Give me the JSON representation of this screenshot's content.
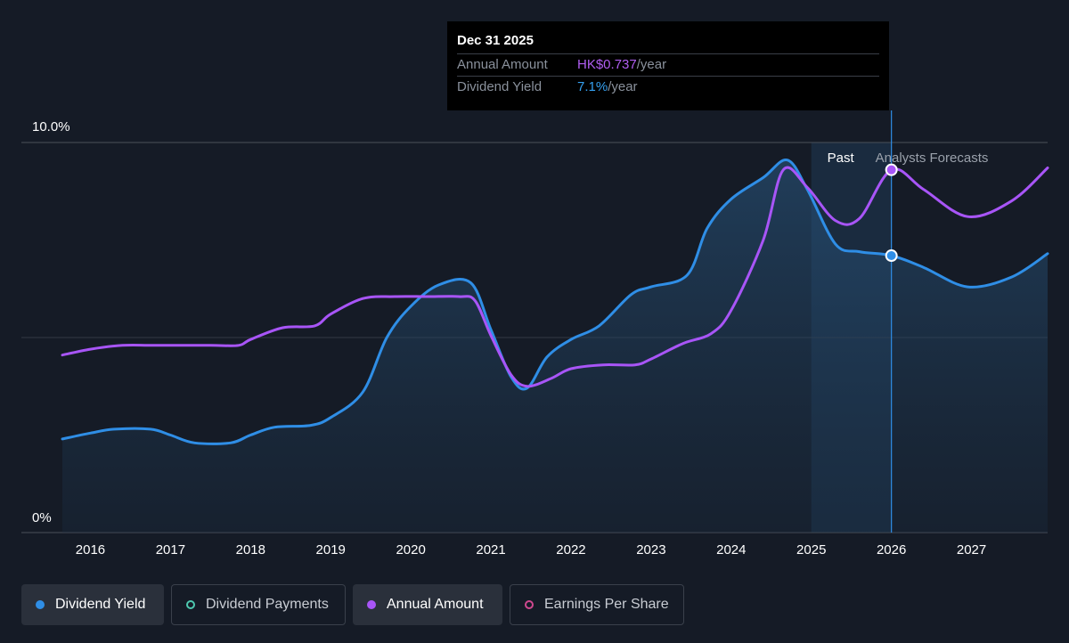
{
  "tooltip": {
    "date": "Dec 31 2025",
    "rows": [
      {
        "label": "Annual Amount",
        "value": "HK$0.737",
        "suffix": "/year"
      },
      {
        "label": "Dividend Yield",
        "value": "7.1%",
        "suffix": "/year"
      }
    ]
  },
  "legend": [
    {
      "label": "Dividend Yield",
      "color": "#2f8ee6",
      "active": true,
      "filled": true
    },
    {
      "label": "Dividend Payments",
      "color": "#4ec9b0",
      "active": false,
      "filled": false
    },
    {
      "label": "Annual Amount",
      "color": "#a855f7",
      "active": true,
      "filled": true
    },
    {
      "label": "Earnings Per Share",
      "color": "#d0488f",
      "active": false,
      "filled": false
    }
  ],
  "colors": {
    "background": "#151b26",
    "yield_line": "#2f8ee6",
    "amount_line": "#a855f7",
    "forecast_band": "#1e3750",
    "gridline": "#4a505a"
  },
  "chart_data": {
    "type": "line",
    "y_tick_labels": [
      "10.0%",
      "0%"
    ],
    "ylim": [
      0,
      10
    ],
    "xlim": [
      2015.65,
      2027.95
    ],
    "x_ticks": [
      2016,
      2017,
      2018,
      2019,
      2020,
      2021,
      2022,
      2023,
      2024,
      2025,
      2026,
      2027
    ],
    "x_tick_labels": [
      "2016",
      "2017",
      "2018",
      "2019",
      "2020",
      "2021",
      "2022",
      "2023",
      "2024",
      "2025",
      "2026",
      "2027"
    ],
    "regions": {
      "past_label": "Past",
      "forecast_label": "Analysts Forecasts",
      "forecast_start": 2025.0,
      "past_end": 2026.0
    },
    "hover_x": 2026.0,
    "series": [
      {
        "name": "Dividend Yield",
        "color": "#2f8ee6",
        "filled": true,
        "points": [
          [
            2015.65,
            2.4
          ],
          [
            2016.0,
            2.55
          ],
          [
            2016.3,
            2.65
          ],
          [
            2016.75,
            2.65
          ],
          [
            2017.0,
            2.5
          ],
          [
            2017.3,
            2.3
          ],
          [
            2017.75,
            2.3
          ],
          [
            2018.0,
            2.5
          ],
          [
            2018.3,
            2.7
          ],
          [
            2018.75,
            2.75
          ],
          [
            2019.0,
            2.95
          ],
          [
            2019.4,
            3.6
          ],
          [
            2019.7,
            5.0
          ],
          [
            2020.0,
            5.8
          ],
          [
            2020.35,
            6.35
          ],
          [
            2020.75,
            6.4
          ],
          [
            2021.0,
            5.2
          ],
          [
            2021.25,
            4.0
          ],
          [
            2021.45,
            3.7
          ],
          [
            2021.7,
            4.5
          ],
          [
            2022.0,
            4.95
          ],
          [
            2022.35,
            5.3
          ],
          [
            2022.75,
            6.1
          ],
          [
            2023.0,
            6.3
          ],
          [
            2023.45,
            6.6
          ],
          [
            2023.7,
            7.8
          ],
          [
            2024.0,
            8.55
          ],
          [
            2024.4,
            9.1
          ],
          [
            2024.7,
            9.55
          ],
          [
            2024.95,
            8.8
          ],
          [
            2025.3,
            7.4
          ],
          [
            2025.6,
            7.2
          ],
          [
            2026.0,
            7.1
          ],
          [
            2026.4,
            6.8
          ],
          [
            2026.95,
            6.3
          ],
          [
            2027.5,
            6.55
          ],
          [
            2027.95,
            7.15
          ]
        ]
      },
      {
        "name": "Annual Amount",
        "color": "#a855f7",
        "filled": false,
        "points": [
          [
            2015.65,
            4.55
          ],
          [
            2016.0,
            4.7
          ],
          [
            2016.4,
            4.8
          ],
          [
            2016.8,
            4.8
          ],
          [
            2017.5,
            4.8
          ],
          [
            2017.85,
            4.8
          ],
          [
            2018.0,
            4.95
          ],
          [
            2018.4,
            5.25
          ],
          [
            2018.8,
            5.3
          ],
          [
            2019.0,
            5.6
          ],
          [
            2019.4,
            6.0
          ],
          [
            2019.8,
            6.05
          ],
          [
            2020.2,
            6.05
          ],
          [
            2020.6,
            6.05
          ],
          [
            2020.8,
            5.95
          ],
          [
            2021.0,
            5.05
          ],
          [
            2021.25,
            4.05
          ],
          [
            2021.45,
            3.75
          ],
          [
            2021.75,
            3.95
          ],
          [
            2022.0,
            4.2
          ],
          [
            2022.4,
            4.3
          ],
          [
            2022.8,
            4.3
          ],
          [
            2023.0,
            4.45
          ],
          [
            2023.4,
            4.85
          ],
          [
            2023.75,
            5.1
          ],
          [
            2024.0,
            5.7
          ],
          [
            2024.4,
            7.5
          ],
          [
            2024.65,
            9.3
          ],
          [
            2024.95,
            8.85
          ],
          [
            2025.3,
            8.0
          ],
          [
            2025.6,
            8.05
          ],
          [
            2026.0,
            9.3
          ],
          [
            2026.4,
            8.8
          ],
          [
            2026.95,
            8.1
          ],
          [
            2027.5,
            8.5
          ],
          [
            2027.95,
            9.35
          ]
        ]
      }
    ],
    "markers": [
      {
        "series": "Annual Amount",
        "x": 2026.0,
        "y": 9.3
      },
      {
        "series": "Dividend Yield",
        "x": 2026.0,
        "y": 7.1
      }
    ]
  }
}
